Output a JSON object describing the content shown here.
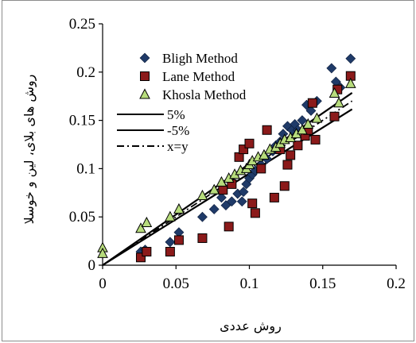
{
  "chart_data": {
    "type": "scatter",
    "title": "",
    "xlabel": "روش عددی",
    "ylabel": "روش های بلای، لین و خوسلا",
    "xlim": [
      0,
      0.2
    ],
    "ylim": [
      0,
      0.25
    ],
    "x_ticks": [
      "0",
      "0.05",
      "0.1",
      "0.15",
      "0.2"
    ],
    "y_ticks": [
      "0",
      "0.05",
      "0.1",
      "0.15",
      "0.2",
      "0.25"
    ],
    "grid": false,
    "legend_position": "top-left",
    "series": [
      {
        "name": "Bligh Method",
        "marker": "diamond",
        "color": "#1f3a68",
        "points": [
          [
            0.026,
            0.014
          ],
          [
            0.029,
            0.016
          ],
          [
            0.046,
            0.024
          ],
          [
            0.052,
            0.034
          ],
          [
            0.068,
            0.05
          ],
          [
            0.076,
            0.058
          ],
          [
            0.081,
            0.07
          ],
          [
            0.084,
            0.062
          ],
          [
            0.088,
            0.066
          ],
          [
            0.092,
            0.074
          ],
          [
            0.095,
            0.066
          ],
          [
            0.096,
            0.076
          ],
          [
            0.098,
            0.084
          ],
          [
            0.1,
            0.09
          ],
          [
            0.102,
            0.094
          ],
          [
            0.104,
            0.098
          ],
          [
            0.108,
            0.104
          ],
          [
            0.112,
            0.11
          ],
          [
            0.116,
            0.118
          ],
          [
            0.118,
            0.124
          ],
          [
            0.121,
            0.128
          ],
          [
            0.123,
            0.136
          ],
          [
            0.126,
            0.144
          ],
          [
            0.129,
            0.14
          ],
          [
            0.131,
            0.146
          ],
          [
            0.133,
            0.14
          ],
          [
            0.136,
            0.15
          ],
          [
            0.139,
            0.166
          ],
          [
            0.142,
            0.16
          ],
          [
            0.146,
            0.17
          ],
          [
            0.156,
            0.204
          ],
          [
            0.159,
            0.19
          ],
          [
            0.162,
            0.184
          ],
          [
            0.169,
            0.214
          ]
        ]
      },
      {
        "name": "Lane Method",
        "marker": "square",
        "color": "#8b1a1a",
        "points": [
          [
            0.026,
            0.008
          ],
          [
            0.03,
            0.014
          ],
          [
            0.046,
            0.014
          ],
          [
            0.052,
            0.026
          ],
          [
            0.068,
            0.028
          ],
          [
            0.082,
            0.078
          ],
          [
            0.086,
            0.04
          ],
          [
            0.088,
            0.084
          ],
          [
            0.093,
            0.112
          ],
          [
            0.096,
            0.12
          ],
          [
            0.1,
            0.126
          ],
          [
            0.102,
            0.064
          ],
          [
            0.104,
            0.054
          ],
          [
            0.108,
            0.1
          ],
          [
            0.112,
            0.14
          ],
          [
            0.117,
            0.07
          ],
          [
            0.121,
            0.12
          ],
          [
            0.124,
            0.082
          ],
          [
            0.126,
            0.104
          ],
          [
            0.128,
            0.114
          ],
          [
            0.133,
            0.124
          ],
          [
            0.138,
            0.134
          ],
          [
            0.14,
            0.14
          ],
          [
            0.143,
            0.168
          ],
          [
            0.145,
            0.13
          ],
          [
            0.158,
            0.154
          ],
          [
            0.16,
            0.182
          ],
          [
            0.169,
            0.196
          ]
        ]
      },
      {
        "name": "Khosla Method",
        "marker": "triangle",
        "color": "#b7dc7c",
        "points": [
          [
            0.0,
            0.018
          ],
          [
            0.0,
            0.012
          ],
          [
            0.026,
            0.038
          ],
          [
            0.03,
            0.044
          ],
          [
            0.046,
            0.05
          ],
          [
            0.052,
            0.058
          ],
          [
            0.068,
            0.072
          ],
          [
            0.076,
            0.078
          ],
          [
            0.081,
            0.086
          ],
          [
            0.086,
            0.09
          ],
          [
            0.09,
            0.094
          ],
          [
            0.094,
            0.098
          ],
          [
            0.098,
            0.1
          ],
          [
            0.1,
            0.104
          ],
          [
            0.102,
            0.108
          ],
          [
            0.106,
            0.112
          ],
          [
            0.11,
            0.114
          ],
          [
            0.114,
            0.12
          ],
          [
            0.118,
            0.122
          ],
          [
            0.121,
            0.126
          ],
          [
            0.124,
            0.13
          ],
          [
            0.128,
            0.132
          ],
          [
            0.132,
            0.136
          ],
          [
            0.136,
            0.14
          ],
          [
            0.14,
            0.146
          ],
          [
            0.146,
            0.152
          ],
          [
            0.158,
            0.178
          ],
          [
            0.161,
            0.168
          ],
          [
            0.169,
            0.188
          ]
        ]
      }
    ],
    "reference_lines": [
      {
        "name": "5%",
        "style": "solid",
        "slope": 1.05
      },
      {
        "name": "-5%",
        "style": "solid",
        "slope": 0.95
      },
      {
        "name": "x=y",
        "style": "dashdot",
        "slope": 1.0
      }
    ],
    "reference_x_range": [
      0,
      0.17
    ]
  }
}
